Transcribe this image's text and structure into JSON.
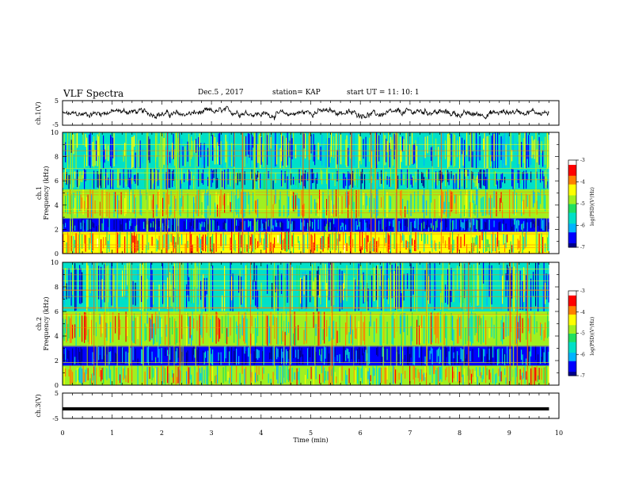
{
  "header": {
    "title": "VLF Spectra",
    "date": "Dec.5 , 2017",
    "station": "station= KAP",
    "start": "start UT =  11: 10: 1"
  },
  "chart_data": [
    {
      "type": "line",
      "panel": "waveform-ch1",
      "ylabel": "ch.1(V)",
      "ylim": [
        -5,
        5
      ],
      "y_ticks": [
        "5",
        "-5"
      ],
      "xlim": [
        0,
        10
      ],
      "series": [
        {
          "note": "dense noisy waveform, amplitude ~ -3 to 3 V",
          "approx_range": [
            -3,
            3
          ]
        }
      ]
    },
    {
      "type": "heatmap",
      "panel": "spectrogram-ch1",
      "ylabel": "ch.1 Frequency (kHz)",
      "ylim": [
        0,
        10
      ],
      "y_ticks": [
        "0",
        "2",
        "4",
        "6",
        "8",
        "10"
      ],
      "xlim": [
        0,
        9.8
      ],
      "colorbar": {
        "label": "log(PSD)(V²/Hz)",
        "range": [
          -7,
          -3
        ],
        "ticks": [
          "-3",
          "-4",
          "-5",
          "-6",
          "-7"
        ]
      },
      "bands_kHz": [
        {
          "from": 0,
          "to": 1.8,
          "level": -4.5
        },
        {
          "from": 1.8,
          "to": 2.9,
          "level": -6.6
        },
        {
          "from": 2.9,
          "to": 5.3,
          "level": -4.8
        },
        {
          "from": 5.3,
          "to": 7.0,
          "level": -5.8
        },
        {
          "from": 7.0,
          "to": 10,
          "level": -5.5
        }
      ]
    },
    {
      "type": "heatmap",
      "panel": "spectrogram-ch2",
      "ylabel": "ch.2 Frequency (kHz)",
      "ylim": [
        0,
        10
      ],
      "y_ticks": [
        "0",
        "2",
        "4",
        "6",
        "8",
        "10"
      ],
      "xlim": [
        0,
        9.8
      ],
      "colorbar": {
        "label": "log(PSD)(V²/Hz)",
        "range": [
          -7,
          -3
        ],
        "ticks": [
          "-3",
          "-4",
          "-5",
          "-6",
          "-7"
        ]
      },
      "bands_kHz": [
        {
          "from": 0,
          "to": 1.6,
          "level": -4.8
        },
        {
          "from": 1.6,
          "to": 3.2,
          "level": -6.7
        },
        {
          "from": 3.2,
          "to": 6.0,
          "level": -4.7
        },
        {
          "from": 6.0,
          "to": 10,
          "level": -5.6
        }
      ]
    },
    {
      "type": "line",
      "panel": "waveform-ch3",
      "ylabel": "ch.3(V)",
      "ylim": [
        -5,
        5
      ],
      "y_ticks": [
        "5",
        "-5"
      ],
      "xlim": [
        0,
        10
      ],
      "series": [
        {
          "note": "flat thick line near",
          "approx_value": -1.2
        }
      ]
    }
  ],
  "x_axis": {
    "label": "Time (min)",
    "ticks": [
      "0",
      "1",
      "2",
      "3",
      "4",
      "5",
      "6",
      "7",
      "8",
      "9",
      "10"
    ]
  },
  "colors": {
    "colormap": [
      "#00008a",
      "#0000ff",
      "#00b4ff",
      "#00e0c8",
      "#20e060",
      "#a0f020",
      "#ffff00",
      "#ff8000",
      "#ff0000",
      "#ffffff"
    ]
  }
}
